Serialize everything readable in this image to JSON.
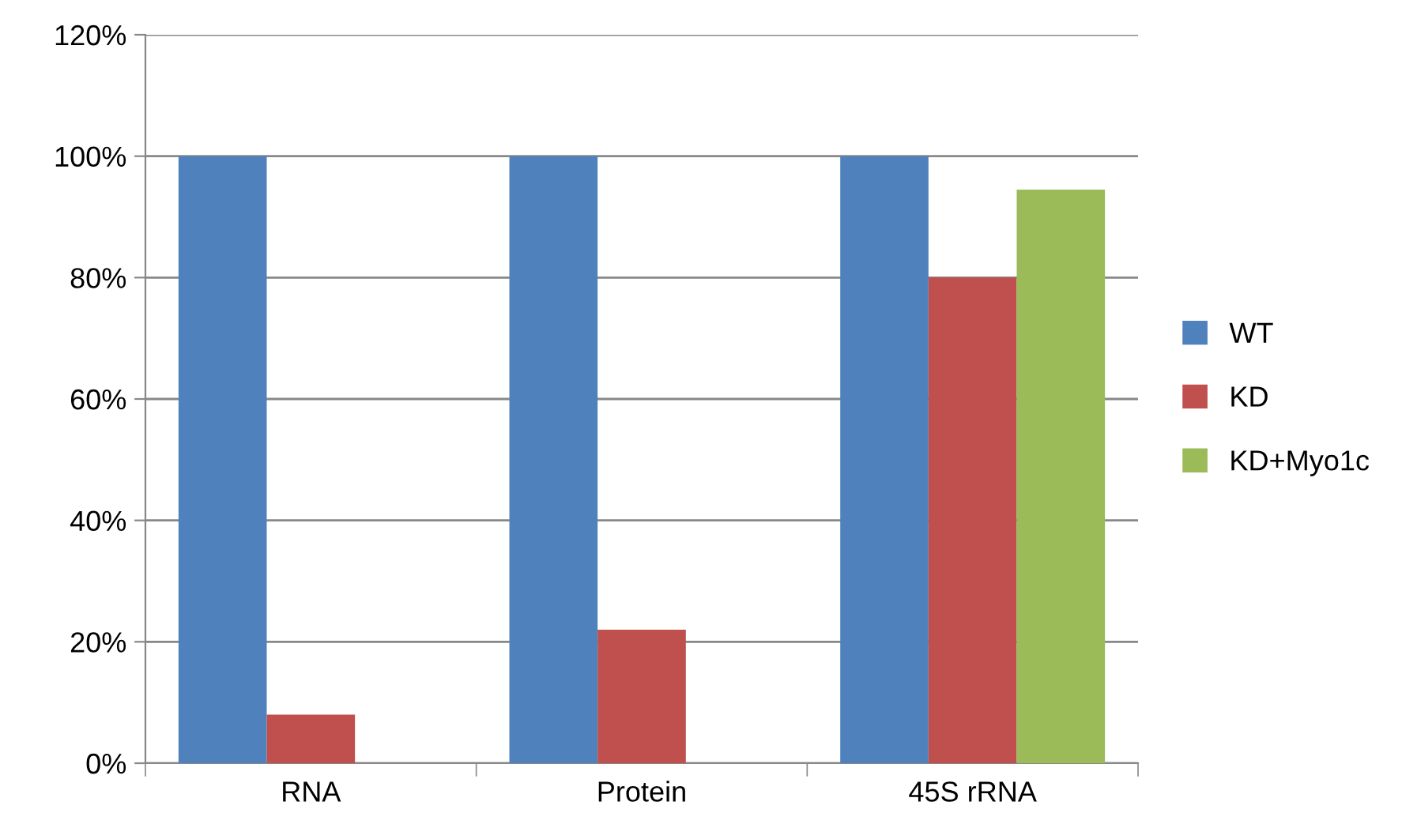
{
  "chart_data": {
    "type": "bar",
    "categories": [
      "RNA",
      "Protein",
      "45S rRNA"
    ],
    "series": [
      {
        "name": "WT",
        "color": "#4f81bd",
        "values": [
          100,
          100,
          100
        ]
      },
      {
        "name": "KD",
        "color": "#c0504d",
        "values": [
          8,
          22,
          80
        ]
      },
      {
        "name": "KD+Myo1c",
        "color": "#9bbb59",
        "values": [
          null,
          null,
          94.5
        ]
      }
    ],
    "ylim": [
      0,
      120
    ],
    "yticks": [
      {
        "value": 0,
        "label": "0%"
      },
      {
        "value": 20,
        "label": "20%"
      },
      {
        "value": 40,
        "label": "40%"
      },
      {
        "value": 60,
        "label": "60%"
      },
      {
        "value": 80,
        "label": "80%"
      },
      {
        "value": 100,
        "label": "100%"
      },
      {
        "value": 120,
        "label": "120%"
      }
    ],
    "grid": "y",
    "legend": "right"
  }
}
